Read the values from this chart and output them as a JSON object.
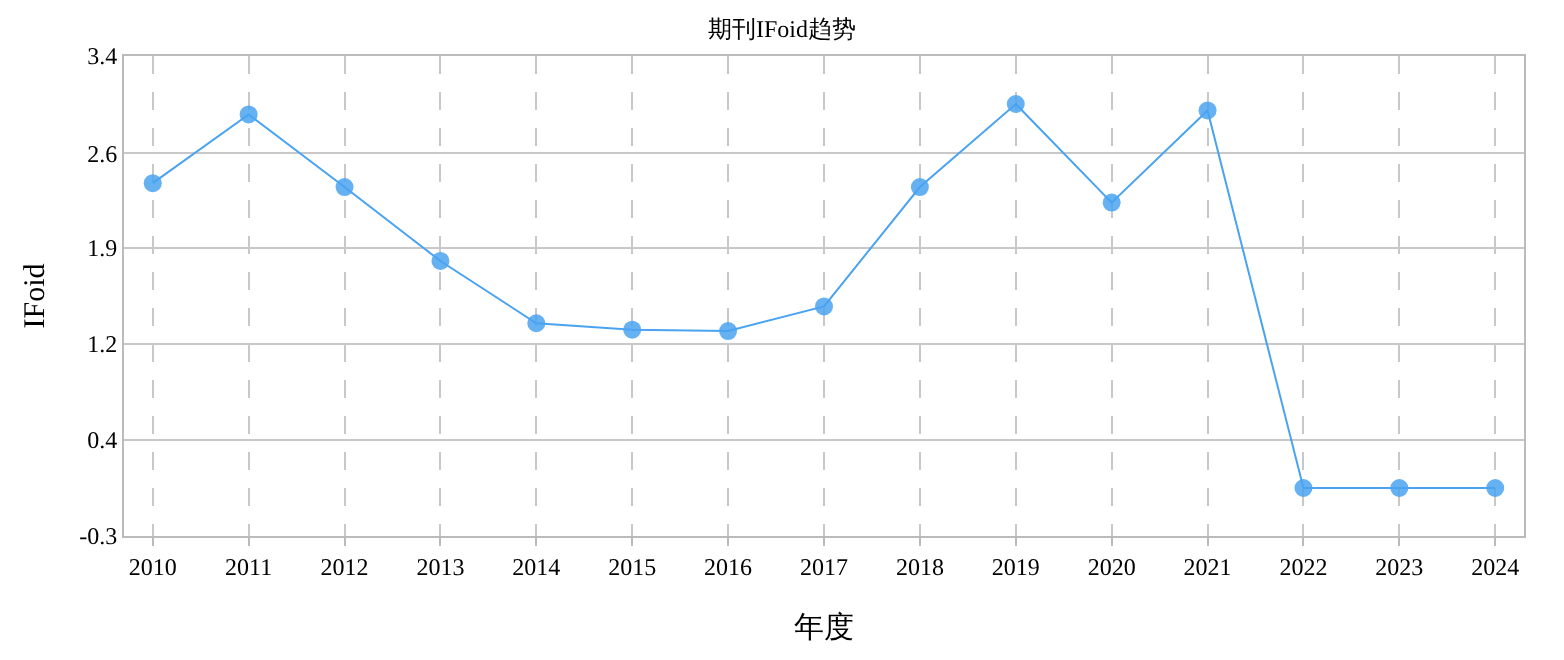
{
  "chart_data": {
    "type": "line",
    "title": "期刊IFoid趋势",
    "xlabel": "年度",
    "ylabel": "IFoid",
    "categories": [
      "2010",
      "2011",
      "2012",
      "2013",
      "2014",
      "2015",
      "2016",
      "2017",
      "2018",
      "2019",
      "2020",
      "2021",
      "2022",
      "2023",
      "2024"
    ],
    "series": [
      {
        "color": "#4aa3f0",
        "values": [
          2.42,
          2.95,
          2.39,
          1.82,
          1.34,
          1.29,
          1.28,
          1.47,
          2.39,
          3.03,
          2.27,
          2.98,
          0.07,
          0.07,
          0.07
        ]
      }
    ],
    "ylim": [
      -0.3,
      3.4
    ],
    "yticks": [
      {
        "value": -0.3,
        "label": "-0.3"
      },
      {
        "value": 0.44,
        "label": "0.4"
      },
      {
        "value": 1.18,
        "label": "1.2"
      },
      {
        "value": 1.92,
        "label": "1.9"
      },
      {
        "value": 2.65,
        "label": "2.6"
      },
      {
        "value": 3.4,
        "label": "3.4"
      }
    ],
    "grid": true,
    "marker": "circle",
    "line_style": "solid"
  }
}
